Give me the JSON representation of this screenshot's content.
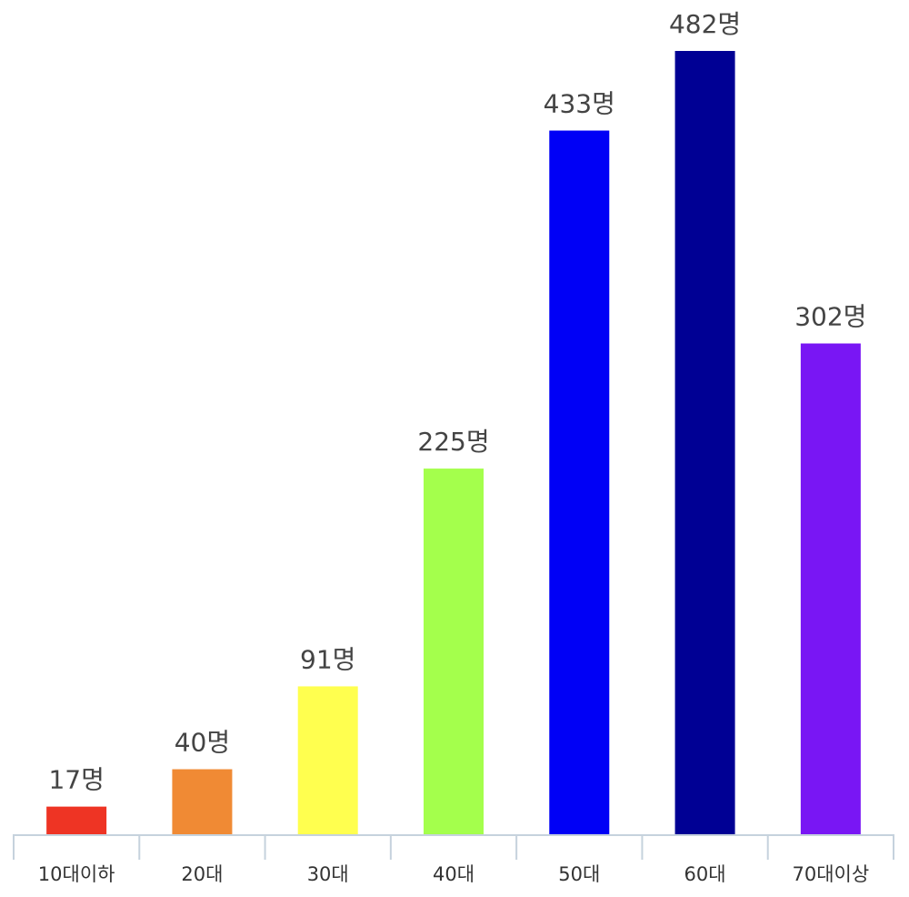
{
  "chart_data": {
    "type": "bar",
    "title": "",
    "xlabel": "",
    "ylabel": "",
    "categories": [
      "10대이하",
      "20대",
      "30대",
      "40대",
      "50대",
      "60대",
      "70대이상"
    ],
    "values": [
      17,
      40,
      91,
      225,
      433,
      482,
      302
    ],
    "value_labels": [
      "17명",
      "40명",
      "91명",
      "225명",
      "433명",
      "482명",
      "302명"
    ],
    "colors": [
      "#ee3424",
      "#f08a34",
      "#ffff4f",
      "#a4ff4c",
      "#0000f6",
      "#000094",
      "#7916f4"
    ],
    "ylim": [
      0,
      482
    ],
    "grid": false,
    "legend": "none",
    "axis_color": "#c6d2dd",
    "label_color": "#444444"
  }
}
